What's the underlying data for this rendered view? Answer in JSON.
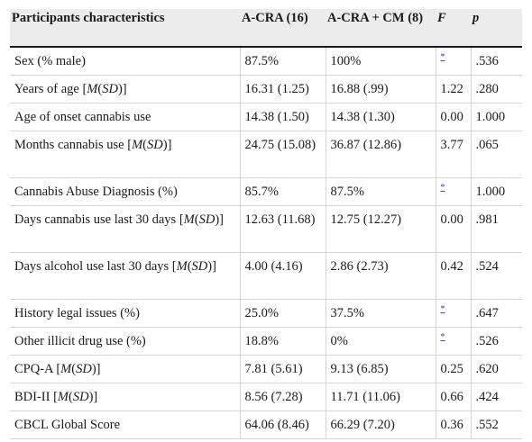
{
  "header": {
    "col1": "Participants characteristics",
    "col2": "A-CRA (16)",
    "col3": "A-CRA + CM (8)",
    "col4": "F",
    "col5": "p"
  },
  "rows": [
    {
      "label_pre": "Sex (% male)",
      "label_it": "",
      "label_mid": "",
      "label_it2": "",
      "label_post": "",
      "a": "87.5%",
      "b": "100%",
      "f": "",
      "f_note": "*",
      "p": ".536",
      "type": "single"
    },
    {
      "label_pre": "Years of age [",
      "label_it": "M",
      "label_mid": "(",
      "label_it2": "SD",
      "label_post": ")]",
      "a": "16.31 (1.25)",
      "b": "16.88 (.99)",
      "f": "1.22",
      "f_note": "",
      "p": ".280",
      "type": "single"
    },
    {
      "label_pre": "Age of onset cannabis use",
      "label_it": "",
      "label_mid": "",
      "label_it2": "",
      "label_post": "",
      "a": "14.38 (1.50)",
      "b": "14.38 (1.30)",
      "f": "0.00",
      "f_note": "",
      "p": "1.000",
      "type": "single"
    },
    {
      "label_pre": "Months cannabis use [",
      "label_it": "M",
      "label_mid": "(",
      "label_it2": "SD",
      "label_post": ")]",
      "a": "24.75 (15.08)",
      "b": "36.87 (12.86)",
      "f": "3.77",
      "f_note": "",
      "p": ".065",
      "type": "double"
    },
    {
      "label_pre": "Cannabis Abuse Diagnosis (%)",
      "label_it": "",
      "label_mid": "",
      "label_it2": "",
      "label_post": "",
      "a": "85.7%",
      "b": "87.5%",
      "f": "",
      "f_note": "*",
      "p": "1.000",
      "type": "single"
    },
    {
      "label_pre": "Days cannabis use last 30 days [",
      "label_it": "M",
      "label_mid": "(",
      "label_it2": "SD",
      "label_post": ")]",
      "a": "12.63 (11.68)",
      "b": "12.75 (12.27)",
      "f": "0.00",
      "f_note": "",
      "p": ".981",
      "type": "double"
    },
    {
      "label_pre": "Days alcohol use last 30 days [",
      "label_it": "M",
      "label_mid": "(",
      "label_it2": "SD",
      "label_post": ")]",
      "a": "4.00 (4.16)",
      "b": "2.86 (2.73)",
      "f": "0.42",
      "f_note": "",
      "p": ".524",
      "type": "double"
    },
    {
      "label_pre": "History legal issues (%)",
      "label_it": "",
      "label_mid": "",
      "label_it2": "",
      "label_post": "",
      "a": "25.0%",
      "b": "37.5%",
      "f": "",
      "f_note": "*",
      "p": ".647",
      "type": "single"
    },
    {
      "label_pre": "Other illicit drug use (%)",
      "label_it": "",
      "label_mid": "",
      "label_it2": "",
      "label_post": "",
      "a": "18.8%",
      "b": "0%",
      "f": "",
      "f_note": "*",
      "p": ".526",
      "type": "single"
    },
    {
      "label_pre": "CPQ-A [",
      "label_it": "M",
      "label_mid": "(",
      "label_it2": "SD",
      "label_post": ")]",
      "a": "7.81 (5.61)",
      "b": "9.13 (6.85)",
      "f": "0.25",
      "f_note": "",
      "p": ".620",
      "type": "single"
    },
    {
      "label_pre": "BDI-II [",
      "label_it": "M",
      "label_mid": "(",
      "label_it2": "SD",
      "label_post": ")]",
      "a": "8.56 (7.28)",
      "b": "11.71 (11.06)",
      "f": "0.66",
      "f_note": "",
      "p": ".424",
      "type": "single"
    },
    {
      "label_pre": "CBCL Global Score",
      "label_it": "",
      "label_mid": "",
      "label_it2": "",
      "label_post": "",
      "a": "64.06 (8.46)",
      "b": "66.29 (7.20)",
      "f": "0.36",
      "f_note": "",
      "p": ".552",
      "type": "single"
    }
  ],
  "style": {
    "header_bg": "#ececec",
    "link_color": "#2b4fc7"
  }
}
